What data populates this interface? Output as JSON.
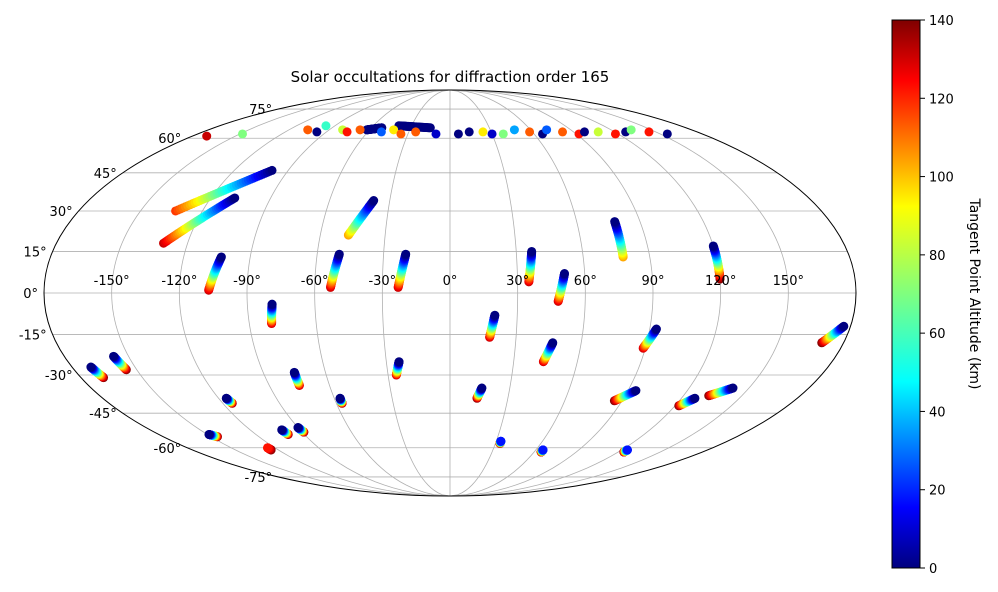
{
  "chart_data": {
    "type": "scatter",
    "projection": "mollweide",
    "title": "Solar occultations for diffraction order 165",
    "grid": true,
    "x_ticks": [
      "-150°",
      "-120°",
      "-90°",
      "-60°",
      "-30°",
      "0°",
      "30°",
      "60°",
      "90°",
      "120°",
      "150°"
    ],
    "y_ticks": [
      "-75°",
      "-60°",
      "-45°",
      "-30°",
      "-15°",
      "0°",
      "15°",
      "30°",
      "45°",
      "60°",
      "75°"
    ],
    "colorbar": {
      "label": "Tangent Point Altitude (km)",
      "colormap": "jet",
      "range": [
        0,
        140
      ],
      "ticks": [
        "0",
        "20",
        "40",
        "60",
        "80",
        "100",
        "120",
        "140"
      ],
      "placement": "right"
    },
    "tracks": [
      {
        "lon_start": -131,
        "lat_start": 18,
        "lon_end": -108,
        "lat_end": 35,
        "alt_start": 130,
        "alt_end": 0
      },
      {
        "lon_start": -133,
        "lat_start": 30,
        "lon_end": -99,
        "lat_end": 46,
        "alt_start": 115,
        "alt_end": 0
      },
      {
        "lon_start": -107,
        "lat_start": 1,
        "lon_end": -103,
        "lat_end": 13,
        "alt_start": 130,
        "alt_end": 0
      },
      {
        "lon_start": -53,
        "lat_start": 2,
        "lon_end": -50,
        "lat_end": 14,
        "alt_start": 130,
        "alt_end": 0
      },
      {
        "lon_start": -47,
        "lat_start": 21,
        "lon_end": -38,
        "lat_end": 34,
        "alt_start": 100,
        "alt_end": 0
      },
      {
        "lon_start": -23,
        "lat_start": 2,
        "lon_end": -20,
        "lat_end": 14,
        "alt_start": 130,
        "alt_end": 0
      },
      {
        "lon_start": 35,
        "lat_start": 4,
        "lon_end": 37,
        "lat_end": 15,
        "alt_start": 130,
        "alt_end": 0
      },
      {
        "lon_start": 48,
        "lat_start": -3,
        "lon_end": 51,
        "lat_end": 7,
        "alt_start": 130,
        "alt_end": 0
      },
      {
        "lon_start": 78,
        "lat_start": 13,
        "lon_end": 78,
        "lat_end": 26,
        "alt_start": 100,
        "alt_end": 0
      },
      {
        "lon_start": 120,
        "lat_start": 5,
        "lon_end": 120,
        "lat_end": 17,
        "alt_start": 140,
        "alt_end": 0
      },
      {
        "lon_start": -80,
        "lat_start": -11,
        "lon_end": -79,
        "lat_end": -4,
        "alt_start": 130,
        "alt_end": 0
      },
      {
        "lon_start": 18,
        "lat_start": -16,
        "lon_end": 20,
        "lat_end": -8,
        "alt_start": 130,
        "alt_end": 0
      },
      {
        "lon_start": 44,
        "lat_start": -25,
        "lon_end": 47,
        "lat_end": -18,
        "alt_start": 130,
        "alt_end": 0
      },
      {
        "lon_start": 89,
        "lat_start": -20,
        "lon_end": 93,
        "lat_end": -13,
        "alt_start": 130,
        "alt_end": 0
      },
      {
        "lon_start": 170,
        "lat_start": -18,
        "lon_end": 177,
        "lat_end": -12,
        "alt_start": 140,
        "alt_end": 0
      },
      {
        "lon_start": -26,
        "lat_start": -30,
        "lon_end": -24,
        "lat_end": -25,
        "alt_start": 130,
        "alt_end": 0
      },
      {
        "lon_start": -75,
        "lat_start": -34,
        "lon_end": -75,
        "lat_end": -29,
        "alt_start": 130,
        "alt_end": 0
      },
      {
        "lon_start": -169,
        "lat_start": -31,
        "lon_end": -171,
        "lat_end": -27,
        "alt_start": 140,
        "alt_end": 0
      },
      {
        "lon_start": -155,
        "lat_start": -28,
        "lon_end": -157,
        "lat_end": -23,
        "alt_start": 140,
        "alt_end": 0
      },
      {
        "lon_start": 14,
        "lat_start": -39,
        "lon_end": 16,
        "lat_end": -35,
        "alt_start": 140,
        "alt_end": 0
      },
      {
        "lon_start": 86,
        "lat_start": -40,
        "lon_end": 94,
        "lat_end": -36,
        "alt_start": 140,
        "alt_end": 0
      },
      {
        "lon_start": 122,
        "lat_start": -42,
        "lon_end": 127,
        "lat_end": -39,
        "alt_start": 140,
        "alt_end": 0
      },
      {
        "lon_start": 133,
        "lat_start": -38,
        "lon_end": 142,
        "lat_end": -35,
        "alt_start": 140,
        "alt_end": 0
      },
      {
        "lon_start": -57,
        "lat_start": -41,
        "lon_end": -57,
        "lat_end": -39,
        "alt_start": 140,
        "alt_end": 0
      },
      {
        "lon_start": -115,
        "lat_start": -41,
        "lon_end": -116,
        "lat_end": -39,
        "alt_start": 140,
        "alt_end": 0
      },
      {
        "lon_start": -100,
        "lat_start": -54,
        "lon_end": -101,
        "lat_end": -52,
        "alt_start": 140,
        "alt_end": 0
      },
      {
        "lon_start": -146,
        "lat_start": -55,
        "lon_end": -149,
        "lat_end": -54,
        "alt_start": 140,
        "alt_end": 0
      },
      {
        "lon_start": -89,
        "lat_start": -53,
        "lon_end": -90,
        "lat_end": -51,
        "alt_start": 140,
        "alt_end": 0
      },
      {
        "lon_start": 33,
        "lat_start": -58,
        "lon_end": 33,
        "lat_end": -57,
        "alt_start": 140,
        "alt_end": 20
      },
      {
        "lon_start": 124,
        "lat_start": -62,
        "lon_end": 124,
        "lat_end": -61,
        "alt_start": 140,
        "alt_end": 20
      },
      {
        "lon_start": 65,
        "lat_start": -62,
        "lon_end": 65,
        "lat_end": -61,
        "alt_start": 140,
        "alt_end": 20
      },
      {
        "lon_start": -125,
        "lat_start": -61,
        "lon_end": -125,
        "lat_end": -60,
        "alt_start": 140,
        "alt_end": 120
      },
      {
        "lon_start": -62,
        "lat_start": 64,
        "lon_end": -52,
        "lat_end": 65,
        "alt_start": 0,
        "alt_end": 0
      },
      {
        "lon_start": -15,
        "lat_start": 65,
        "lon_end": -40,
        "lat_end": 66,
        "alt_start": 0,
        "alt_end": 0
      }
    ],
    "polar_points": [
      {
        "lon": -170,
        "lat": 61,
        "alt": 130
      },
      {
        "lon": -148,
        "lat": 62,
        "alt": 70
      },
      {
        "lon": -106,
        "lat": 64,
        "alt": 110
      },
      {
        "lon": -97,
        "lat": 63,
        "alt": 0
      },
      {
        "lon": -97,
        "lat": 66,
        "alt": 60
      },
      {
        "lon": -80,
        "lat": 64,
        "alt": 80
      },
      {
        "lon": -75,
        "lat": 63,
        "alt": 120
      },
      {
        "lon": -67,
        "lat": 64,
        "alt": 110
      },
      {
        "lon": -50,
        "lat": 63,
        "alt": 30
      },
      {
        "lon": -42,
        "lat": 64,
        "alt": 90
      },
      {
        "lon": -35,
        "lat": 62,
        "alt": 110
      },
      {
        "lon": -25,
        "lat": 63,
        "alt": 110
      },
      {
        "lon": -10,
        "lat": 62,
        "alt": 10
      },
      {
        "lon": 6,
        "lat": 62,
        "alt": 0
      },
      {
        "lon": 14,
        "lat": 63,
        "alt": 0
      },
      {
        "lon": 24,
        "lat": 63,
        "alt": 90
      },
      {
        "lon": 30,
        "lat": 62,
        "alt": 10
      },
      {
        "lon": 38,
        "lat": 62,
        "alt": 70
      },
      {
        "lon": 48,
        "lat": 64,
        "alt": 40
      },
      {
        "lon": 58,
        "lat": 63,
        "alt": 110
      },
      {
        "lon": 66,
        "lat": 62,
        "alt": 0
      },
      {
        "lon": 72,
        "lat": 64,
        "alt": 30
      },
      {
        "lon": 82,
        "lat": 63,
        "alt": 110
      },
      {
        "lon": 92,
        "lat": 62,
        "alt": 120
      },
      {
        "lon": 98,
        "lat": 63,
        "alt": 0
      },
      {
        "lon": 108,
        "lat": 63,
        "alt": 80
      },
      {
        "lon": 118,
        "lat": 62,
        "alt": 120
      },
      {
        "lon": 128,
        "lat": 63,
        "alt": 0
      },
      {
        "lon": 135,
        "lat": 64,
        "alt": 70
      },
      {
        "lon": 145,
        "lat": 63,
        "alt": 120
      },
      {
        "lon": 155,
        "lat": 62,
        "alt": 0
      }
    ]
  }
}
